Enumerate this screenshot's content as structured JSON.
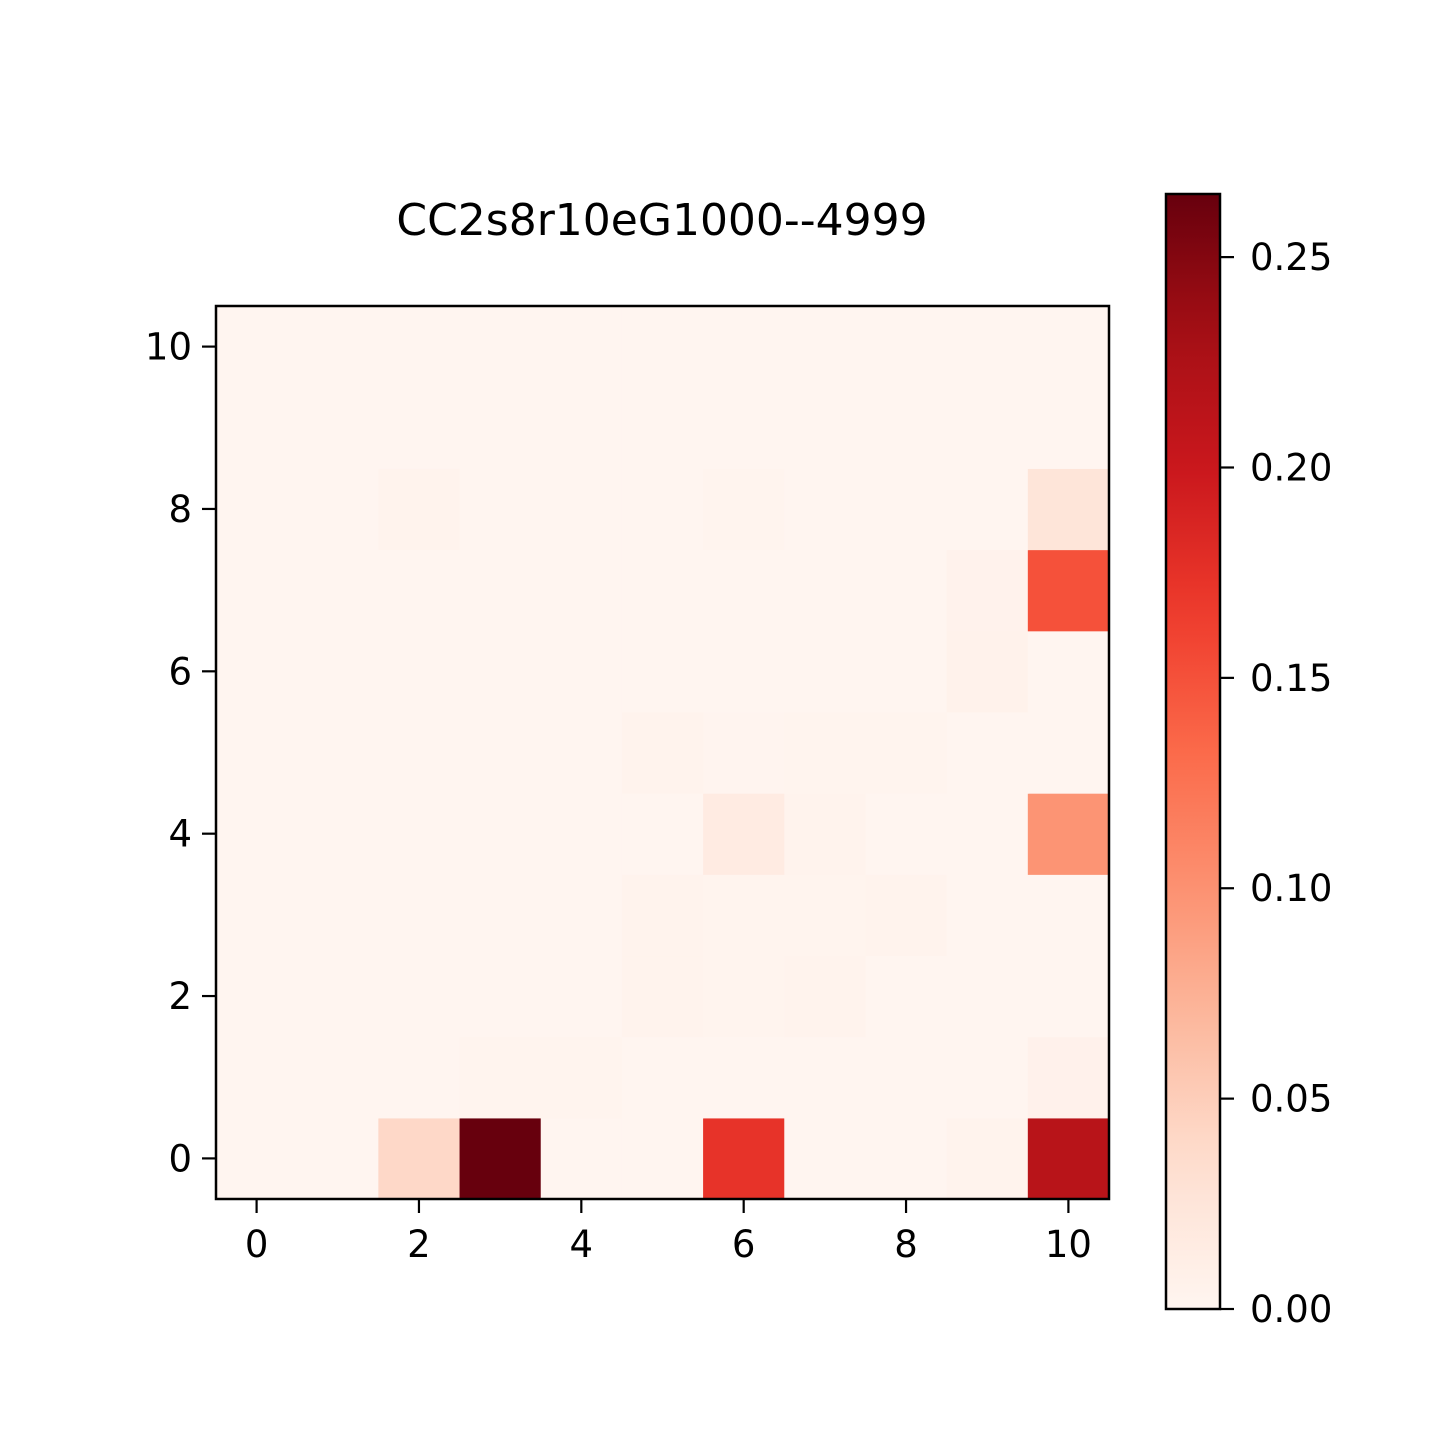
{
  "chart_data": {
    "type": "heatmap",
    "title": "CC2s8r10eG1000--4999",
    "xlabel": "",
    "ylabel": "",
    "x_ticks": [
      0,
      2,
      4,
      6,
      8,
      10
    ],
    "y_ticks": [
      0,
      2,
      4,
      6,
      8,
      10
    ],
    "xlim": [
      -0.5,
      10.5
    ],
    "ylim": [
      -0.5,
      10.5
    ],
    "origin": "lower",
    "colormap": "Reds",
    "vmin": 0.0,
    "vmax": 0.265,
    "colorbar": {
      "ticks": [
        0.0,
        0.05,
        0.1,
        0.15,
        0.2,
        0.25
      ],
      "tick_labels": [
        "0.00",
        "0.05",
        "0.10",
        "0.15",
        "0.20",
        "0.25"
      ],
      "placement": "right"
    },
    "grid": false,
    "matrix": [
      [
        0.0,
        0.0,
        0.04,
        0.265,
        0.0,
        0.0,
        0.173,
        0.0,
        0.0,
        0.003,
        0.215
      ],
      [
        0.0,
        0.0,
        0.0,
        0.002,
        0.002,
        0.0,
        0.0,
        0.0,
        0.0,
        0.0,
        0.006
      ],
      [
        0.0,
        0.0,
        0.0,
        0.0,
        0.0,
        0.003,
        0.002,
        0.003,
        0.0,
        0.0,
        0.0
      ],
      [
        0.0,
        0.0,
        0.0,
        0.0,
        0.0,
        0.003,
        0.002,
        0.002,
        0.003,
        0.0,
        0.0
      ],
      [
        0.0,
        0.0,
        0.0,
        0.0,
        0.0,
        0.0,
        0.015,
        0.003,
        0.0,
        0.0,
        0.098
      ],
      [
        0.0,
        0.0,
        0.0,
        0.0,
        0.0,
        0.003,
        0.001,
        0.002,
        0.002,
        0.0,
        0.0
      ],
      [
        0.0,
        0.0,
        0.0,
        0.0,
        0.0,
        0.0,
        0.0,
        0.0,
        0.0,
        0.005,
        0.0
      ],
      [
        0.0,
        0.0,
        0.0,
        0.0,
        0.0,
        0.0,
        0.0,
        0.0,
        0.0,
        0.004,
        0.15
      ],
      [
        0.0,
        0.0,
        0.003,
        0.0,
        0.0,
        0.0,
        0.002,
        0.0,
        0.0,
        0.0,
        0.025
      ],
      [
        0.0,
        0.0,
        0.0,
        0.0,
        0.0,
        0.0,
        0.0,
        0.0,
        0.0,
        0.0,
        0.0
      ],
      [
        0.0,
        0.0,
        0.0,
        0.0,
        0.0,
        0.0,
        0.0,
        0.0,
        0.0,
        0.0,
        0.0
      ]
    ]
  }
}
